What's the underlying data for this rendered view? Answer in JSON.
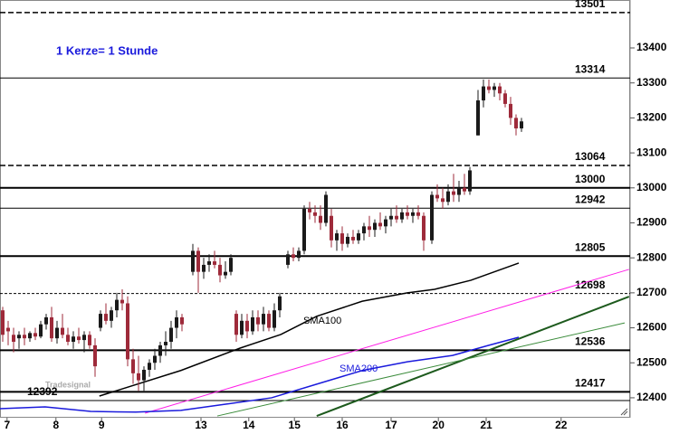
{
  "chart_data": {
    "type": "candlestick",
    "note": "1 Kerze= 1 Stunde",
    "watermark": "Tradesignal",
    "ylim": [
      12343,
      13537
    ],
    "yticks": [
      12400,
      12500,
      12600,
      12700,
      12800,
      12900,
      13000,
      13100,
      13200,
      13300,
      13400
    ],
    "xlim": [
      0,
      116
    ],
    "xticks": [
      {
        "value": 1.3,
        "label": "7"
      },
      {
        "value": 10.3,
        "label": "8"
      },
      {
        "value": 18.7,
        "label": "9"
      },
      {
        "value": 37,
        "label": "13"
      },
      {
        "value": 45.8,
        "label": "14"
      },
      {
        "value": 54.2,
        "label": "15"
      },
      {
        "value": 63,
        "label": "16"
      },
      {
        "value": 72,
        "label": "17"
      },
      {
        "value": 80.7,
        "label": "20"
      },
      {
        "value": 89.5,
        "label": "21"
      },
      {
        "value": 103.3,
        "label": "22"
      }
    ],
    "up_color": "#1a1a1a",
    "down_color": "#9e2a3a",
    "candles": {
      "x": [
        0.5,
        1.5,
        2.5,
        3.5,
        4.5,
        5.5,
        6.5,
        7.5,
        8.5,
        9.5,
        10.5,
        11.5,
        12.5,
        13.5,
        14.5,
        15.5,
        16.5,
        17.5,
        18.5,
        19.5,
        20.5,
        21.5,
        22.5,
        23.5,
        24.5,
        25.5,
        26.5,
        27.5,
        28.5,
        29.5,
        30.5,
        31.5,
        32.5,
        33.5,
        35.5,
        36.5,
        37.5,
        38.5,
        39.5,
        40.5,
        41.5,
        42.5,
        43.5,
        44.5,
        45.5,
        46.5,
        47.5,
        48.5,
        49.5,
        50.5,
        51.5,
        53,
        54,
        55,
        56,
        57,
        58,
        59,
        60,
        61,
        62,
        63,
        64,
        65,
        66,
        67,
        68,
        69,
        70,
        71,
        72,
        73,
        74,
        75,
        76,
        77,
        78,
        79.5,
        80.5,
        81.5,
        82.5,
        83.5,
        84.5,
        85.5,
        86.5,
        88,
        89,
        90,
        91,
        92,
        93,
        94,
        95,
        96
      ],
      "open": [
        12650,
        12600,
        12580,
        12570,
        12580,
        12570,
        12585,
        12575,
        12610,
        12630,
        12570,
        12600,
        12580,
        12560,
        12575,
        12565,
        12580,
        12550,
        12600,
        12640,
        12620,
        12650,
        12680,
        12670,
        12510,
        12470,
        12450,
        12480,
        12500,
        12520,
        12550,
        12560,
        12600,
        12630,
        12760,
        12820,
        12760,
        12780,
        12790,
        12780,
        12750,
        12760,
        12640,
        12580,
        12620,
        12590,
        12630,
        12610,
        12640,
        12600,
        12650,
        12780,
        12810,
        12800,
        12820,
        12940,
        12930,
        12920,
        12900,
        12920,
        12850,
        12870,
        12840,
        12860,
        12850,
        12870,
        12890,
        12880,
        12900,
        12890,
        12910,
        12920,
        12910,
        12930,
        12920,
        12930,
        12920,
        12850,
        12980,
        12970,
        12960,
        12990,
        12980,
        13000,
        12990,
        13150,
        13250,
        13290,
        13280,
        13290,
        13270,
        13240,
        13200,
        13170
      ],
      "high": [
        12660,
        12620,
        12600,
        12590,
        12600,
        12590,
        12600,
        12620,
        12640,
        12660,
        12620,
        12640,
        12600,
        12590,
        12600,
        12590,
        12590,
        12570,
        12650,
        12670,
        12660,
        12700,
        12710,
        12690,
        12540,
        12520,
        12490,
        12510,
        12540,
        12560,
        12590,
        12620,
        12650,
        12640,
        12840,
        12830,
        12800,
        12810,
        12820,
        12800,
        12790,
        12810,
        12650,
        12640,
        12640,
        12650,
        12650,
        12660,
        12650,
        12670,
        12700,
        12820,
        12830,
        12830,
        12950,
        12960,
        12950,
        12950,
        12990,
        12940,
        12880,
        12890,
        12870,
        12880,
        12880,
        12900,
        12920,
        12910,
        12930,
        12920,
        12940,
        12950,
        12940,
        12950,
        12940,
        12950,
        12930,
        12990,
        13010,
        13000,
        13010,
        13040,
        13020,
        13040,
        13060,
        13280,
        13310,
        13310,
        13300,
        13300,
        13280,
        13260,
        13210,
        13200
      ],
      "low": [
        12560,
        12550,
        12530,
        12540,
        12550,
        12560,
        12565,
        12570,
        12595,
        12560,
        12555,
        12570,
        12550,
        12540,
        12555,
        12530,
        12540,
        12460,
        12590,
        12610,
        12600,
        12630,
        12650,
        12490,
        12440,
        12420,
        12420,
        12460,
        12480,
        12500,
        12520,
        12540,
        12570,
        12590,
        12750,
        12700,
        12740,
        12760,
        12770,
        12730,
        12740,
        12750,
        12560,
        12570,
        12570,
        12580,
        12590,
        12590,
        12590,
        12590,
        12630,
        12770,
        12790,
        12790,
        12810,
        12910,
        12900,
        12880,
        12890,
        12830,
        12820,
        12820,
        12830,
        12840,
        12840,
        12850,
        12860,
        12860,
        12880,
        12870,
        12890,
        12900,
        12900,
        12910,
        12900,
        12910,
        12820,
        12840,
        12960,
        12940,
        12950,
        12960,
        12960,
        12980,
        12980,
        13150,
        13230,
        13270,
        13260,
        13250,
        13230,
        13180,
        13150,
        13160
      ],
      "close": [
        12580,
        12590,
        12560,
        12580,
        12570,
        12585,
        12575,
        12610,
        12630,
        12570,
        12600,
        12580,
        12560,
        12575,
        12565,
        12580,
        12550,
        12490,
        12640,
        12620,
        12650,
        12680,
        12670,
        12510,
        12470,
        12450,
        12480,
        12500,
        12520,
        12550,
        12560,
        12600,
        12630,
        12610,
        12820,
        12760,
        12780,
        12790,
        12780,
        12750,
        12760,
        12800,
        12580,
        12620,
        12590,
        12630,
        12610,
        12640,
        12600,
        12650,
        12690,
        12810,
        12800,
        12820,
        12940,
        12930,
        12920,
        12900,
        12980,
        12850,
        12870,
        12840,
        12860,
        12850,
        12870,
        12890,
        12880,
        12900,
        12890,
        12910,
        12920,
        12910,
        12930,
        12920,
        12930,
        12920,
        12850,
        12980,
        12970,
        12960,
        12990,
        12980,
        13000,
        12990,
        13050,
        13250,
        13290,
        13280,
        13290,
        13270,
        13240,
        13200,
        13170,
        13190
      ]
    },
    "lines": [
      {
        "name": "SMA100",
        "color": "#000000",
        "x": [
          18.3,
          33.3,
          44.2,
          51.7,
          58.3,
          66.7,
          75,
          80,
          86.7,
          95.5
        ],
        "values": [
          12405,
          12478,
          12542,
          12581,
          12633,
          12676,
          12700,
          12710,
          12736,
          12785
        ]
      },
      {
        "name": "SMA200",
        "color": "#1a1adc",
        "x": [
          0,
          8.3,
          16.7,
          25,
          33.3,
          41.7,
          50,
          58.3,
          66.7,
          75,
          83.3,
          90,
          95.5
        ],
        "values": [
          12369,
          12374,
          12361,
          12359,
          12364,
          12382,
          12400,
          12439,
          12478,
          12503,
          12521,
          12550,
          12573
        ]
      }
    ],
    "trendlines": [
      {
        "color": "#ff1ee6",
        "x": [
          26.7,
          115.8
        ],
        "values": [
          12356,
          12767
        ]
      },
      {
        "color": "#1d5a1d",
        "x": [
          58.3,
          115.8
        ],
        "values": [
          12348,
          12689
        ]
      },
      {
        "color": "#3c8c3c",
        "x": [
          40,
          115
        ],
        "values": [
          12348,
          12614
        ]
      }
    ],
    "levels": [
      {
        "value": 13501,
        "style": "dashed"
      },
      {
        "value": 13314,
        "style": "thin"
      },
      {
        "value": 13064,
        "style": "dashed"
      },
      {
        "value": 13000,
        "style": "thick"
      },
      {
        "value": 12942,
        "style": "thin"
      },
      {
        "value": 12805,
        "style": "thick"
      },
      {
        "value": 12698,
        "style": "dotted"
      },
      {
        "value": 12536,
        "style": "thick"
      },
      {
        "value": 12417,
        "style": "thick"
      },
      {
        "value": 12392,
        "style": "thin",
        "label_side": "left"
      }
    ]
  }
}
